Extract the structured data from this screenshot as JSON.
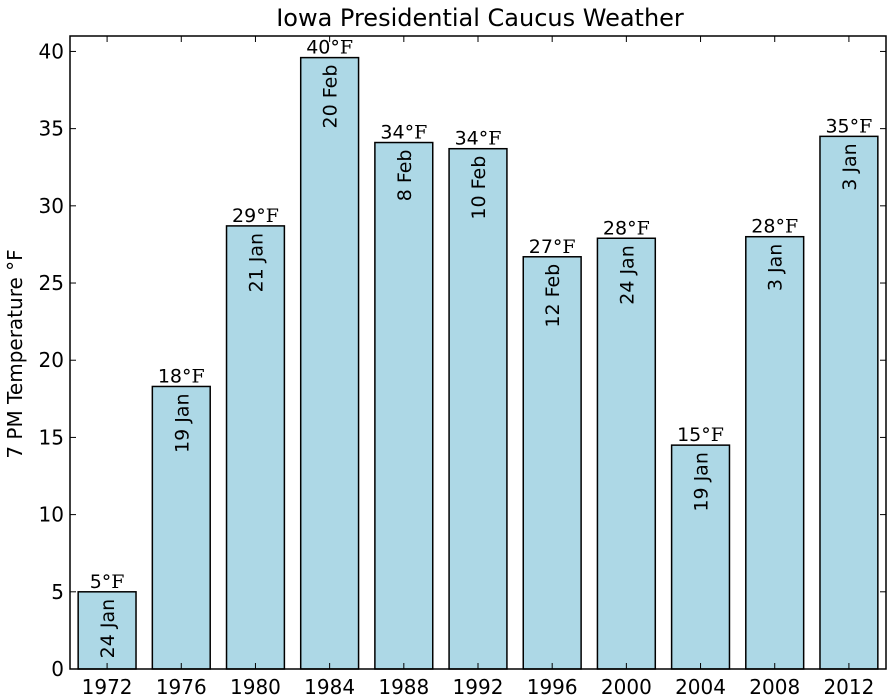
{
  "chart_data": {
    "type": "bar",
    "title": "Iowa Presidential Caucus Weather",
    "ylabel": "7 PM Temperature °F",
    "xlabel": "",
    "ylim": [
      0,
      41
    ],
    "yticks": [
      0,
      5,
      10,
      15,
      20,
      25,
      30,
      35,
      40
    ],
    "grid": false,
    "bar_color": "#add8e6",
    "unit_label": "°F",
    "categories": [
      "1972",
      "1976",
      "1980",
      "1984",
      "1988",
      "1992",
      "1996",
      "2000",
      "2004",
      "2008",
      "2012"
    ],
    "values": [
      5,
      18.3,
      28.7,
      39.6,
      34.1,
      33.7,
      26.7,
      27.9,
      14.5,
      28.0,
      34.5
    ],
    "value_labels": [
      "5",
      "18",
      "29",
      "40",
      "34",
      "34",
      "27",
      "28",
      "15",
      "28",
      "35"
    ],
    "dates": [
      "24 Jan",
      "19 Jan",
      "21 Jan",
      "20 Feb",
      "8 Feb",
      "10 Feb",
      "12 Feb",
      "24 Jan",
      "19 Jan",
      "3 Jan",
      "3 Jan"
    ]
  }
}
